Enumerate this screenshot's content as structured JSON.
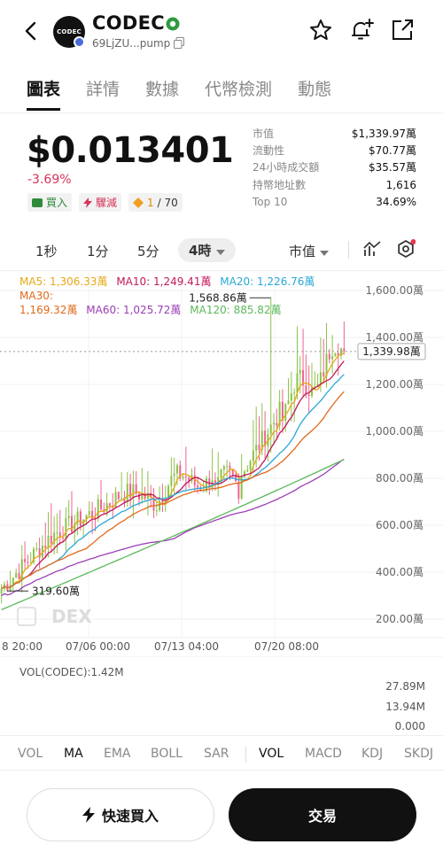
{
  "header": {
    "token_name": "CODEC",
    "avatar_text": "CODEC",
    "address": "69LjZU...pump"
  },
  "tabs": [
    {
      "label": "圖表",
      "active": true
    },
    {
      "label": "詳情",
      "active": false
    },
    {
      "label": "數據",
      "active": false
    },
    {
      "label": "代幣檢測",
      "active": false
    },
    {
      "label": "動態",
      "active": false
    }
  ],
  "price": {
    "value": "$0.013401",
    "change": "-3.69%"
  },
  "badges": {
    "buy": "買入",
    "sell": "驟減",
    "holders_ratio": "1",
    "holders_total": "/ 70"
  },
  "stats": [
    {
      "label": "市值",
      "value": "$1,339.97萬"
    },
    {
      "label": "流動性",
      "value": "$70.77萬"
    },
    {
      "label": "24小時成交額",
      "value": "$35.57萬"
    },
    {
      "label": "持幣地址數",
      "value": "1,616"
    },
    {
      "label": "Top 10",
      "value": "34.69%"
    }
  ],
  "intervals": {
    "items": [
      "1秒",
      "1分",
      "5分"
    ],
    "active": "4時",
    "metric": "市值"
  },
  "ma_legend": {
    "ma5": "MA5: 1,306.33萬",
    "ma10": "MA10: 1,249.41萬",
    "ma20": "MA20: 1,226.76萬",
    "ma30_label": "MA30:",
    "ma30_value": "1,169.32萬",
    "ma60": "MA60: 1,025.72萬",
    "ma120": "MA120: 885.82萬"
  },
  "chart_data": {
    "type": "candlestick",
    "y_axis_labels": [
      "1,600.00萬",
      "1,400.00萬",
      "1,200.00萬",
      "1,000.00萬",
      "800.00萬",
      "600.00萬",
      "400.00萬",
      "200.00萬"
    ],
    "y_axis_values": [
      1600,
      1400,
      1200,
      1000,
      800,
      600,
      400,
      200
    ],
    "ylim": [
      140,
      1700
    ],
    "x_labels": [
      "8 20:00",
      "07/06 00:00",
      "07/13 04:00",
      "07/20 08:00"
    ],
    "high_marker": "1,568.86萬",
    "low_marker": "319.60萬",
    "current_marker": "1,339.98萬",
    "watermark": "DEX",
    "ma_colors": {
      "ma5": "#e6a817",
      "ma10": "#c2185b",
      "ma20": "#29a8d6",
      "ma30": "#e06a1c",
      "ma60": "#9b3fb5",
      "ma120": "#5cb85c"
    },
    "up_color": "#8bc34a",
    "down_color": "#f06292",
    "volume": {
      "title": "VOL(CODEC):1.42M",
      "axis_labels": [
        "27.89M",
        "13.94M",
        "0.000"
      ]
    }
  },
  "indicators": {
    "main": [
      "VOL",
      "MA",
      "EMA",
      "BOLL",
      "SAR"
    ],
    "sub": [
      "VOL",
      "MACD",
      "KDJ",
      "SKDJ"
    ],
    "active_main": "MA",
    "active_sub": "VOL"
  },
  "buttons": {
    "quick_buy": "快速買入",
    "trade": "交易"
  }
}
